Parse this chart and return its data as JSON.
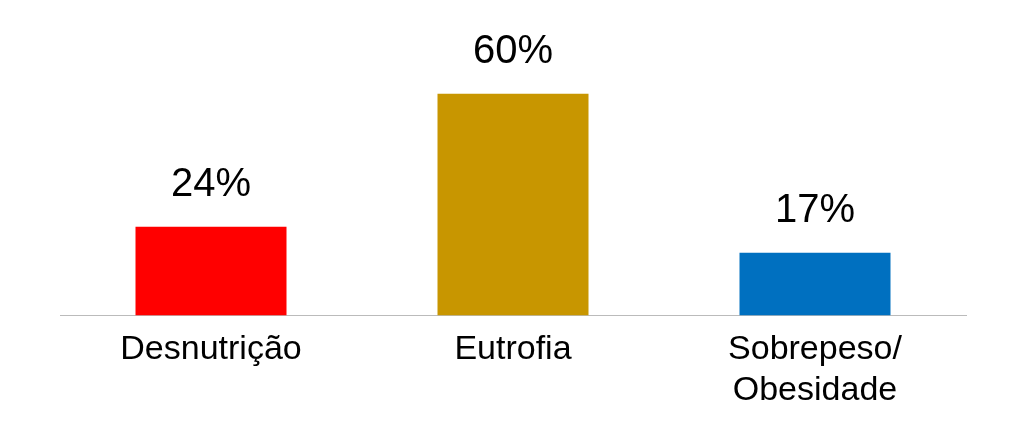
{
  "chart_data": {
    "type": "bar",
    "categories": [
      "Desnutrição",
      "Eutrofia",
      "Sobrepeso/ Obesidade"
    ],
    "values": [
      24,
      60,
      17
    ],
    "colors": [
      "#ff0000",
      "#c89600",
      "#0070c0"
    ],
    "value_labels": [
      "24%",
      "60%",
      "17%"
    ],
    "grid": false,
    "legend": false
  }
}
